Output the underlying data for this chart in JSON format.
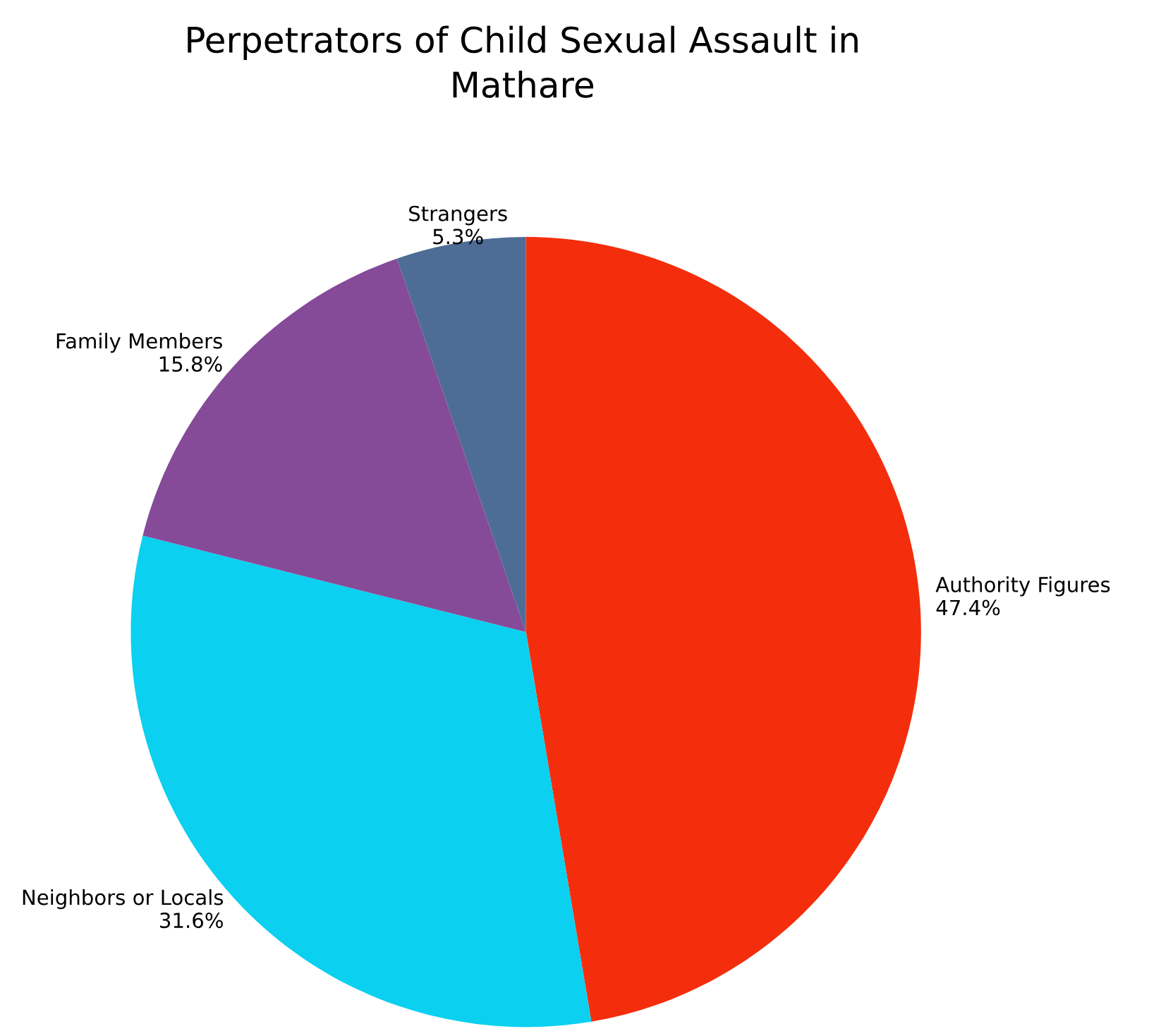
{
  "chart_data": {
    "type": "pie",
    "title": "Perpetrators of Child Sexual Assault in\nMathare",
    "categories": [
      "Authority Figures",
      "Neighbors or Locals",
      "Family Members",
      "Strangers"
    ],
    "values": [
      47.4,
      31.6,
      15.8,
      5.3
    ],
    "value_labels": [
      "47.4%",
      "31.6%",
      "15.8%",
      "5.3%"
    ],
    "colors": [
      "#f42e0c",
      "#0bd0f0",
      "#854a98",
      "#4d6d96"
    ],
    "legend": false
  }
}
